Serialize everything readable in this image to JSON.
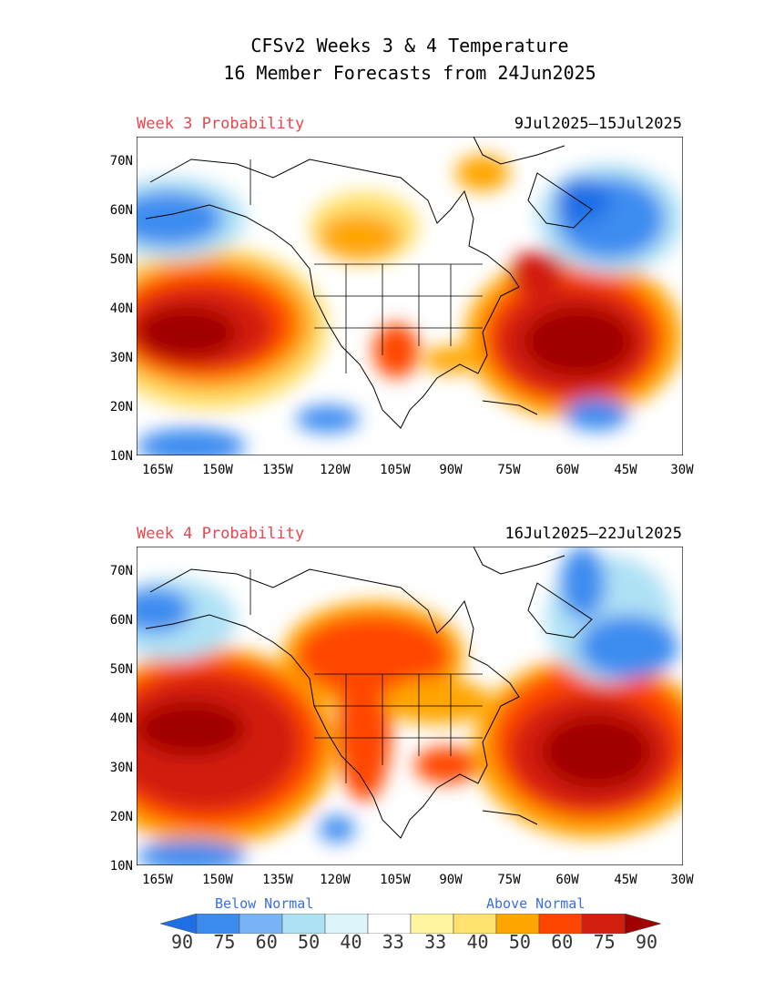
{
  "title_line1": "CFSv2 Weeks 3 & 4 Temperature",
  "title_line2": "16 Member Forecasts from 24Jun2025",
  "panels": [
    {
      "label": "Week 3 Probability",
      "date_range": "9Jul2025‒15Jul2025"
    },
    {
      "label": "Week 4 Probability",
      "date_range": "16Jul2025‒22Jul2025"
    }
  ],
  "lat_ticks": [
    "70N",
    "60N",
    "50N",
    "40N",
    "30N",
    "20N",
    "10N"
  ],
  "lon_ticks": [
    "165W",
    "150W",
    "135W",
    "120W",
    "105W",
    "90W",
    "75W",
    "60W",
    "45W",
    "30W"
  ],
  "legend": {
    "below_label": "Below Normal",
    "above_label": "Above Normal",
    "ticks": [
      "90",
      "75",
      "60",
      "50",
      "40",
      "33",
      "33",
      "40",
      "50",
      "60",
      "75",
      "90"
    ],
    "colors": [
      "#1e6ee6",
      "#3c8cf0",
      "#78b4f5",
      "#afe1f5",
      "#dcf5fa",
      "#ffffff",
      "#fff5a0",
      "#ffe16e",
      "#ffa500",
      "#ff4600",
      "#d21e0f",
      "#a00000"
    ]
  }
}
